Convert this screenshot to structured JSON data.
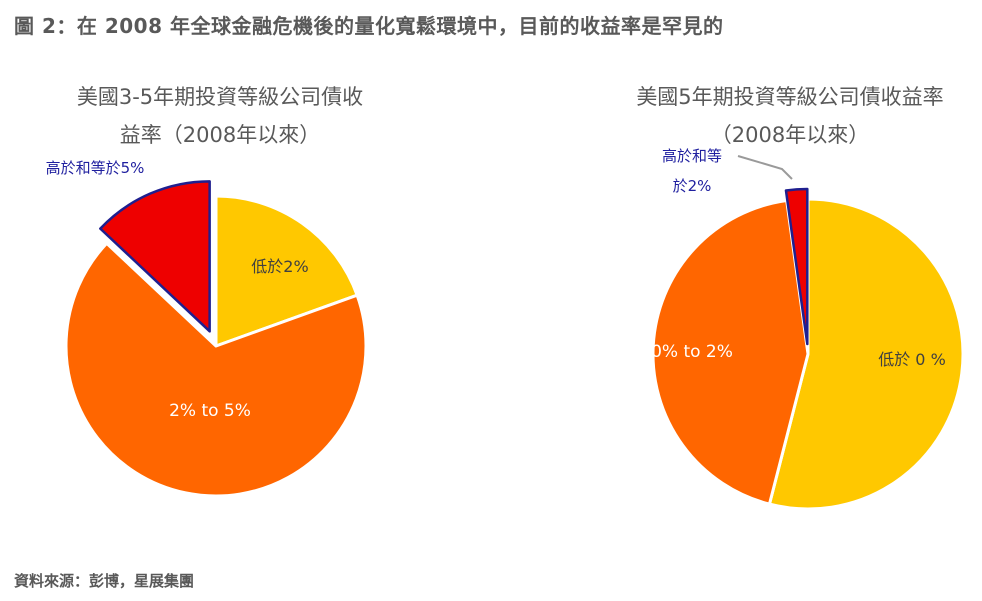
{
  "figure_title": "圖 2：在 2008 年全球金融危機後的量化寬鬆環境中，目前的收益率是罕見的",
  "source": "資料來源：彭博，星展集團",
  "colors": {
    "low": "#FFC800",
    "mid": "#FF6600",
    "high": "#EE0000",
    "high_border": "#1F1F8F",
    "outside_label": "#1F1F9F",
    "inside_label_dark": "#404040",
    "inside_label_light": "#ffffff"
  },
  "chart_data": [
    {
      "type": "pie",
      "title_lines": [
        "美國3-5年期投資等級公司債收",
        "益率（2008年以來）"
      ],
      "slices": [
        {
          "label": "低於2%",
          "value": 19.5,
          "color_key": "low",
          "label_style": "inside_dark"
        },
        {
          "label": "2% to 5%",
          "value": 67.5,
          "color_key": "mid",
          "label_style": "inside_light"
        },
        {
          "label": "高於和等於5%",
          "value": 13.0,
          "color_key": "high",
          "label_style": "outside",
          "exploded": true
        }
      ]
    },
    {
      "type": "pie",
      "title_lines": [
        "美國5年期投資等級公司債收益率",
        "（2008年以來）"
      ],
      "slices": [
        {
          "label": "低於 0 %",
          "value": 54.0,
          "color_key": "low",
          "label_style": "inside_dark"
        },
        {
          "label": "0% to 2%",
          "value": 43.8,
          "color_key": "mid",
          "label_style": "inside_light"
        },
        {
          "label_lines": [
            "高於和等",
            "於2%"
          ],
          "label": "高於和等於2%",
          "value": 2.2,
          "color_key": "high",
          "label_style": "outside",
          "exploded": true,
          "leader_line": true
        }
      ]
    }
  ]
}
